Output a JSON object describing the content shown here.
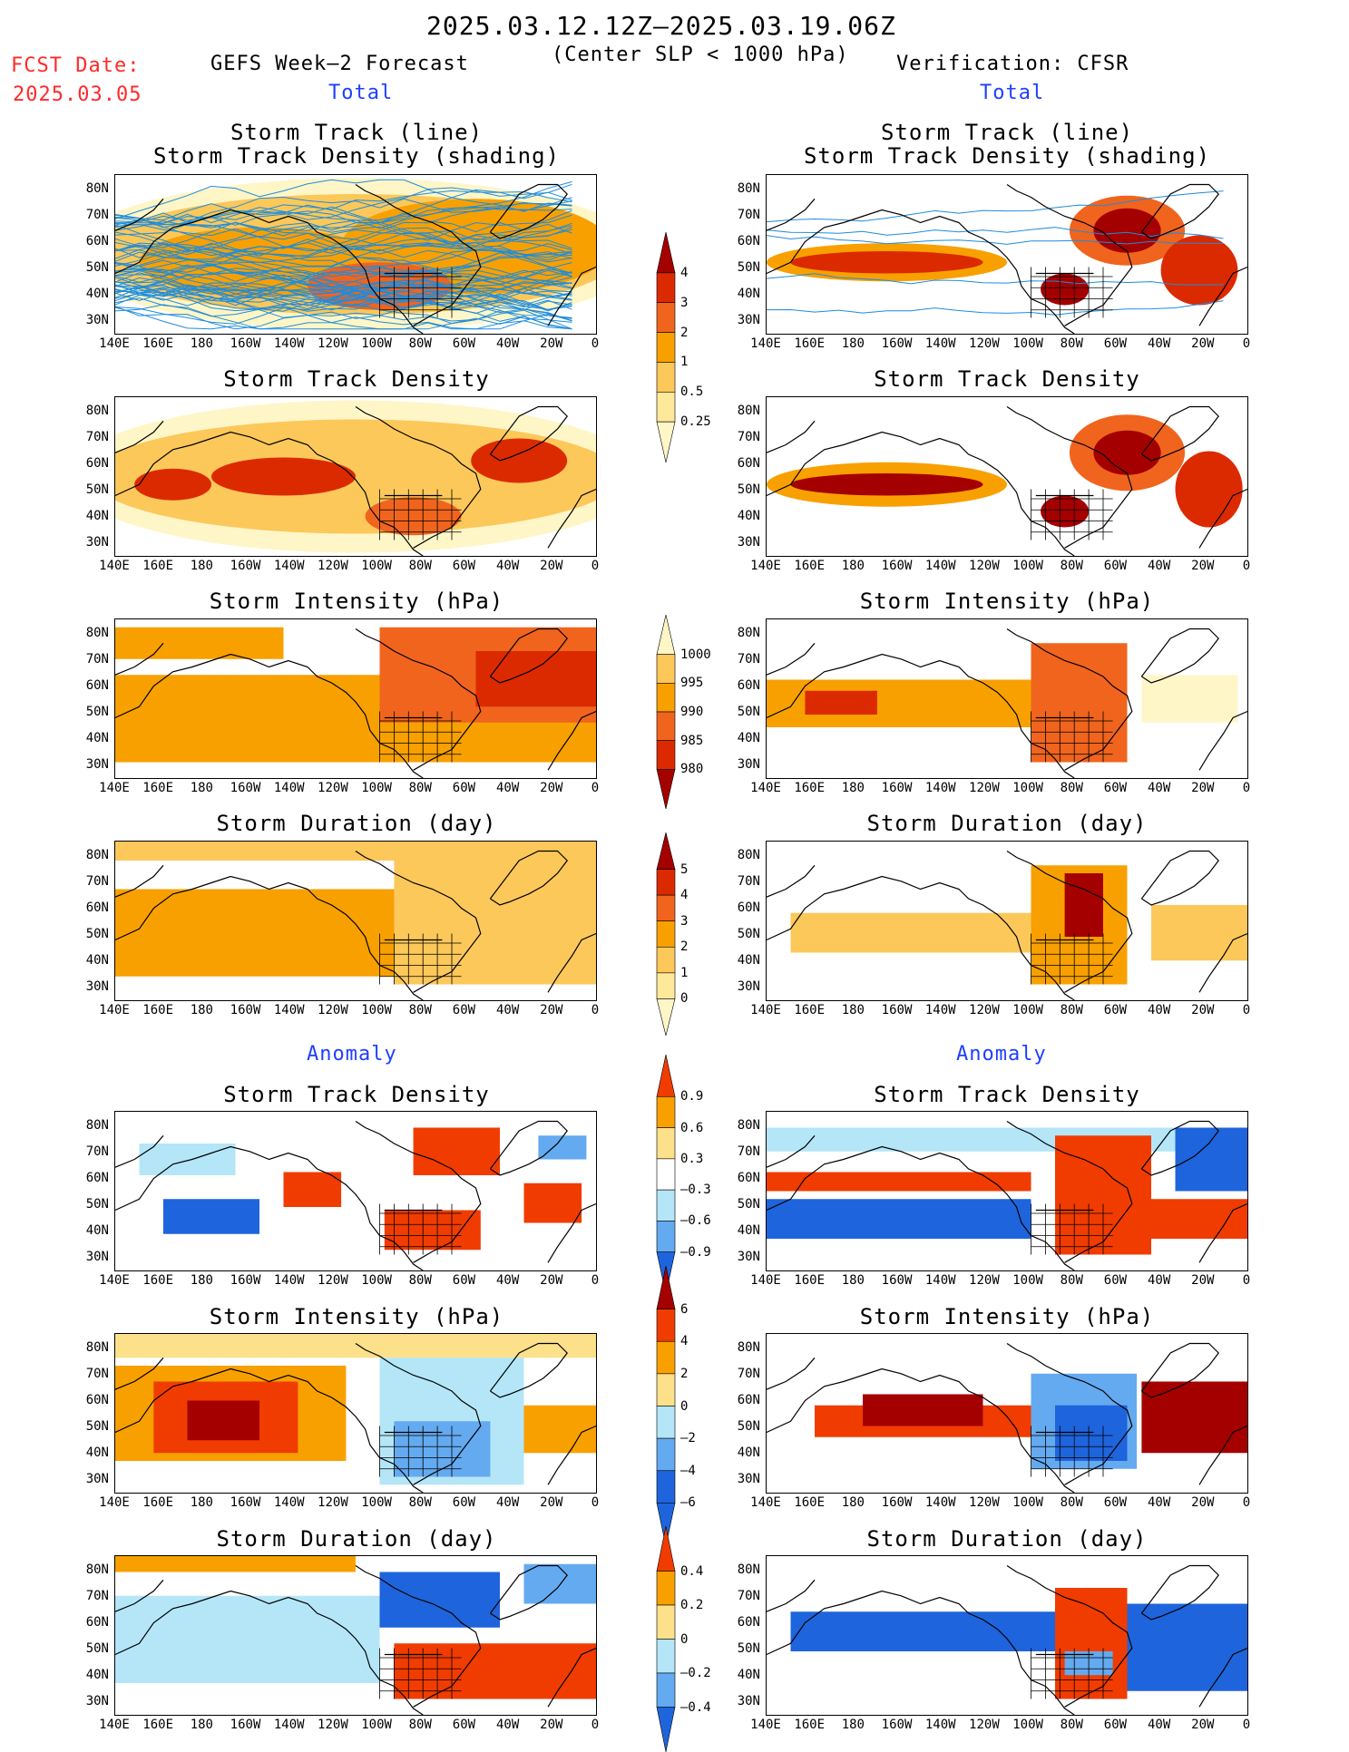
{
  "header": {
    "period": "2025.03.12.12Z—2025.03.19.06Z",
    "criterion": "(Center SLP < 1000 hPa)",
    "fcst_label": "FCST Date:",
    "fcst_date": "2025.03.05",
    "left_title": "GEFS Week—2 Forecast",
    "right_title": "Verification: CFSR",
    "total_label": "Total",
    "anomaly_label": "Anomaly"
  },
  "panel_titles": {
    "track_line": "Storm Track (line)",
    "track_density_shading": "Storm Track Density (shading)",
    "track_density": "Storm Track Density",
    "intensity": "Storm Intensity (hPa)",
    "duration": "Storm Duration (day)"
  },
  "axes": {
    "lat_labels": [
      "80N",
      "70N",
      "60N",
      "50N",
      "40N",
      "30N"
    ],
    "lon_labels": [
      "140E",
      "160E",
      "180",
      "160W",
      "140W",
      "120W",
      "100W",
      "80W",
      "60W",
      "40W",
      "20W",
      "0"
    ]
  },
  "colorbars": {
    "density_total": {
      "labels": [
        "4",
        "3",
        "2",
        "1",
        "0.5",
        "0.25"
      ],
      "colors": [
        "#a50000",
        "#dc2a00",
        "#f0641e",
        "#f8a000",
        "#fcc85a",
        "#fee89a",
        "#fff6c8"
      ]
    },
    "intensity_total": {
      "labels": [
        "1000",
        "995",
        "990",
        "985",
        "980"
      ],
      "colors": [
        "#fff6c8",
        "#fcc85a",
        "#f8a000",
        "#f0641e",
        "#dc2a00",
        "#a50000"
      ]
    },
    "duration_total": {
      "labels": [
        "5",
        "4",
        "3",
        "2",
        "1",
        "0"
      ],
      "colors": [
        "#a50000",
        "#dc2a00",
        "#f0641e",
        "#f8a000",
        "#fcc85a",
        "#fee89a",
        "#fff6c8"
      ]
    },
    "density_anom": {
      "labels": [
        "0.9",
        "0.6",
        "0.3",
        "—0.3",
        "—0.6",
        "—0.9"
      ],
      "colors": [
        "#f03c00",
        "#f8a000",
        "#fce08a",
        "#ffffff",
        "#b4e6f8",
        "#64aaf0",
        "#1e64dc"
      ]
    },
    "intensity_anom": {
      "labels": [
        "6",
        "4",
        "2",
        "0",
        "—2",
        "—4",
        "—6"
      ],
      "colors": [
        "#a50000",
        "#f03c00",
        "#f8a000",
        "#fce08a",
        "#b4e6f8",
        "#64aaf0",
        "#1e64dc",
        "#1e64dc"
      ]
    },
    "duration_anom": {
      "labels": [
        "0.4",
        "0.2",
        "0",
        "—0.2",
        "—0.4"
      ],
      "colors": [
        "#f03c00",
        "#f8a000",
        "#fce08a",
        "#b4e6f8",
        "#64aaf0",
        "#1e64dc"
      ]
    }
  },
  "colors": {
    "track_lines": "#1e8cdc",
    "track_red": "#dc2a00",
    "frame": "#000000",
    "coast": "#000000",
    "fcst_red": "#ff2a2a",
    "label_blue": "#1f3fff"
  }
}
